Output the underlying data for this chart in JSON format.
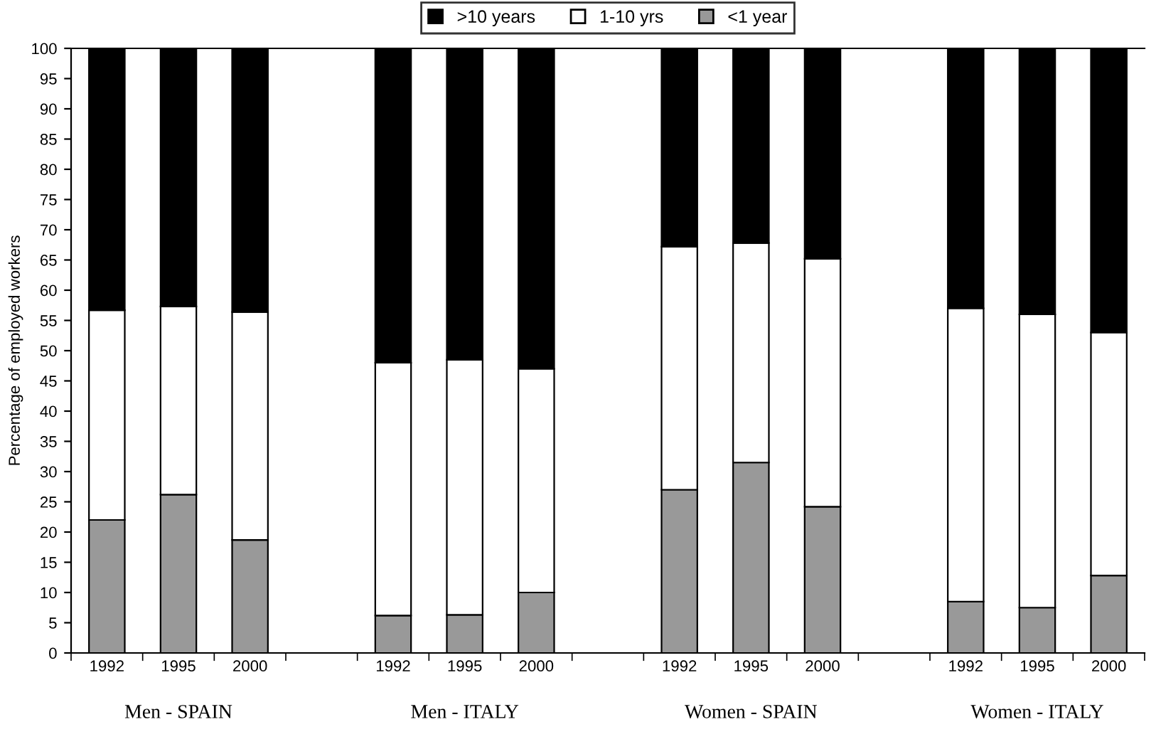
{
  "chart_data": {
    "type": "bar",
    "stacked": true,
    "ylabel": "Percentage of employed workers",
    "categories": [
      "1992",
      "1995",
      "2000",
      null,
      "1992",
      "1995",
      "2000",
      null,
      "1992",
      "1995",
      "2000",
      null,
      "1992",
      "1995",
      "2000"
    ],
    "series": [
      {
        "name": "<1 year",
        "color": "#999999",
        "values": [
          22,
          26.2,
          18.7,
          null,
          6.2,
          6.3,
          10,
          null,
          27,
          31.5,
          24.2,
          null,
          8.5,
          7.5,
          12.8
        ]
      },
      {
        "name": "1-10 yrs",
        "color": "#ffffff",
        "values": [
          34.7,
          31.1,
          37.7,
          null,
          41.8,
          42.2,
          37,
          null,
          40.2,
          36.3,
          41,
          null,
          48.5,
          48.5,
          40.2
        ]
      },
      {
        "name": ">10 years",
        "color": "#000000",
        "values": [
          43.3,
          42.7,
          43.6,
          null,
          52,
          51.5,
          53,
          null,
          32.8,
          32.2,
          34.8,
          null,
          43,
          44,
          47
        ]
      }
    ],
    "ylim": [
      0,
      100
    ],
    "yticks": [
      0,
      5,
      10,
      15,
      20,
      25,
      30,
      35,
      40,
      45,
      50,
      55,
      60,
      65,
      70,
      75,
      80,
      85,
      90,
      95,
      100
    ],
    "annotations": [
      "Men - SPAIN",
      "Men - ITALY",
      "Women - SPAIN",
      "Women - ITALY"
    ],
    "legend": "top",
    "grid": false
  }
}
